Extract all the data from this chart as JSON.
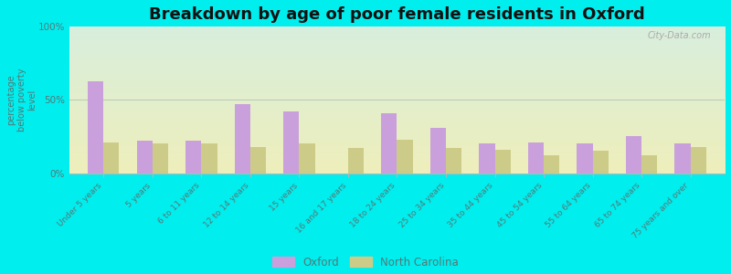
{
  "title": "Breakdown by age of poor female residents in Oxford",
  "ylabel": "percentage\nbelow poverty\nlevel",
  "categories": [
    "Under 5 years",
    "5 years",
    "6 to 11 years",
    "12 to 14 years",
    "15 years",
    "16 and 17 years",
    "18 to 24 years",
    "25 to 34 years",
    "35 to 44 years",
    "45 to 54 years",
    "55 to 64 years",
    "65 to 74 years",
    "75 years and over"
  ],
  "oxford_values": [
    63,
    22,
    22,
    47,
    42,
    0,
    41,
    31,
    20,
    21,
    20,
    25,
    20
  ],
  "nc_values": [
    21,
    20,
    20,
    18,
    20,
    17,
    23,
    17,
    16,
    12,
    15,
    12,
    18
  ],
  "oxford_color": "#c9a0dc",
  "nc_color": "#cccc88",
  "bg_color_top": "#d8eedd",
  "bg_color_bottom": "#eeeebb",
  "outer_bg": "#00eeee",
  "plot_bg": "#f0f8f0",
  "ylim": [
    0,
    100
  ],
  "yticks": [
    0,
    50,
    100
  ],
  "ytick_labels": [
    "0%",
    "50%",
    "100%"
  ],
  "bar_width": 0.32,
  "title_fontsize": 13,
  "legend_oxford": "Oxford",
  "legend_nc": "North Carolina",
  "watermark": "City-Data.com",
  "tick_color": "#557777",
  "spine_color": "#aabbbb"
}
